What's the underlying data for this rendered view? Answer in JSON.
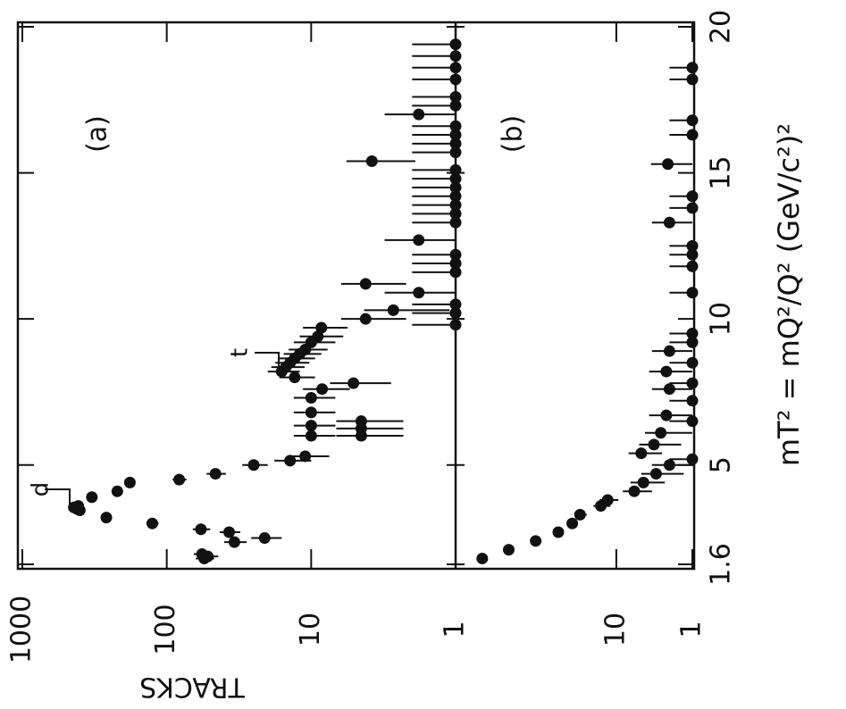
{
  "chart_data": [
    {
      "type": "scatter",
      "label": "(a)",
      "ylabel": "TRACKS",
      "xlabel": "mT² = mQ²/Q²  (GeV/c²)²",
      "log_y": true,
      "ylim": [
        1,
        1000
      ],
      "yticks": [
        1,
        10,
        100,
        1000
      ],
      "xlim": [
        1.6,
        20
      ],
      "xticks": [
        1.6,
        5,
        10,
        15,
        20
      ],
      "annotations": [
        "d",
        "t"
      ],
      "color": "#111111",
      "x": [
        1.8,
        1.87,
        1.95,
        2.36,
        2.5,
        2.7,
        2.8,
        3.0,
        3.2,
        3.45,
        3.5,
        3.55,
        3.6,
        3.9,
        4.1,
        4.4,
        4.5,
        4.7,
        5.0,
        5.15,
        5.3,
        6.0,
        6.25,
        6.5,
        6.0,
        6.35,
        6.8,
        7.3,
        7.6,
        7.8,
        8.0,
        8.2,
        8.35,
        8.5,
        8.65,
        8.8,
        8.95,
        9.2,
        9.4,
        9.7,
        10.0,
        10.3,
        10.9,
        11.2,
        12.7,
        15.4,
        17.0,
        9.8,
        10.2,
        10.5,
        11.6,
        11.9,
        12.2,
        13.3,
        13.6,
        13.9,
        14.2,
        14.5,
        14.8,
        15.1,
        15.7,
        16.0,
        16.3,
        16.6,
        17.3,
        17.6,
        18.2,
        18.6,
        19.0,
        19.4
      ],
      "values": [
        55,
        52,
        57,
        34,
        21,
        37,
        58,
        126,
        262,
        400,
        420,
        440,
        410,
        330,
        220,
        180,
        82,
        46,
        25,
        14,
        11,
        4.5,
        4.5,
        4.5,
        10,
        10,
        10,
        10,
        8.4,
        5.1,
        13,
        16,
        15,
        14,
        13,
        12,
        11,
        10,
        9,
        8.5,
        4.2,
        2.7,
        1.8,
        4.2,
        1.8,
        3.8,
        1.8,
        1,
        1,
        1,
        1,
        1,
        1,
        1,
        1,
        1,
        1,
        1,
        1,
        1,
        1,
        1,
        1,
        1,
        1,
        1,
        1,
        1,
        1,
        1
      ],
      "errors": [
        8,
        8,
        8,
        6,
        5,
        6,
        8,
        12,
        16,
        20,
        20,
        21,
        20,
        18,
        15,
        13,
        9,
        7,
        5,
        4,
        3.5,
        2.2,
        2.2,
        2.2,
        3.2,
        3.2,
        3.2,
        3.2,
        3,
        2.3,
        3.6,
        4,
        3.9,
        3.7,
        3.6,
        3.5,
        3.3,
        3.2,
        3,
        2.9,
        2,
        1.6,
        1.3,
        2,
        1.3,
        1.9,
        1.3,
        1,
        1,
        1,
        1,
        1,
        1,
        1,
        1,
        1,
        1,
        1,
        1,
        1,
        1,
        1,
        1,
        1,
        1,
        1,
        1,
        1,
        1,
        1
      ]
    },
    {
      "type": "scatter",
      "label": "(b)",
      "log_y": true,
      "ylim": [
        1,
        1300
      ],
      "yticks": [
        1,
        10
      ],
      "xlim": [
        1.6,
        20
      ],
      "color": "#111111",
      "x": [
        1.8,
        2.1,
        2.4,
        2.7,
        3.0,
        3.3,
        3.6,
        3.8,
        4.1,
        4.4,
        4.7,
        5.0,
        5.4,
        5.7,
        6.1,
        6.7,
        7.6,
        8.2,
        8.9,
        13.3,
        15.3,
        5.2,
        6.5,
        7.2,
        7.8,
        8.5,
        9.2,
        9.5,
        10.9,
        11.8,
        12.2,
        12.5,
        13.8,
        14.2,
        16.3,
        16.8,
        18.2,
        18.6
      ],
      "values": [
        580,
        260,
        115,
        58,
        38,
        30,
        16,
        13,
        5.8,
        4.4,
        3,
        2,
        4.7,
        3.2,
        2.6,
        2.2,
        2,
        2.2,
        2,
        2,
        2.1,
        1,
        1,
        1,
        1,
        1,
        1,
        1,
        1,
        1,
        1,
        1,
        1,
        1,
        1,
        1,
        1,
        1
      ],
      "errors": [
        24,
        16,
        11,
        8,
        6,
        5.5,
        4,
        3.6,
        2.4,
        2.1,
        1.7,
        1.4,
        2.2,
        1.8,
        1.6,
        1.5,
        1.4,
        1.5,
        1.4,
        1.4,
        1.4,
        1,
        1,
        1,
        1,
        1,
        1,
        1,
        1,
        1,
        1,
        1,
        1,
        1,
        1,
        1,
        1,
        1
      ]
    }
  ]
}
